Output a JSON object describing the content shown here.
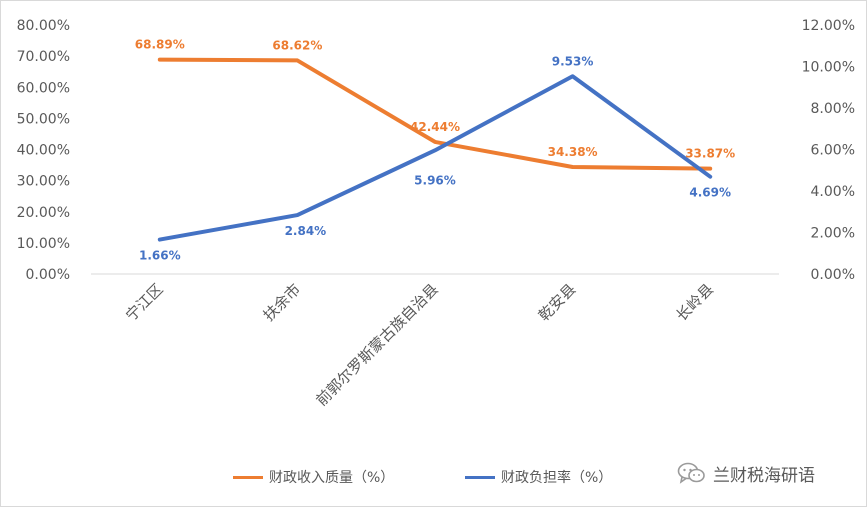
{
  "chart_data": {
    "type": "line",
    "categories": [
      "宁江区",
      "扶余市",
      "前郭尔罗斯蒙古族自治县",
      "乾安县",
      "长岭县"
    ],
    "series": [
      {
        "name": "财政收入质量（%）",
        "axis": "left",
        "color": "#ED7D31",
        "values": [
          68.89,
          68.62,
          42.44,
          34.38,
          33.87
        ],
        "labels": [
          "68.89%",
          "68.62%",
          "42.44%",
          "34.38%",
          "33.87%"
        ]
      },
      {
        "name": "财政负担率（%）",
        "axis": "right",
        "color": "#4472C4",
        "values": [
          1.66,
          2.84,
          5.96,
          9.53,
          4.69
        ],
        "labels": [
          "1.66%",
          "2.84%",
          "5.96%",
          "9.53%",
          "4.69%"
        ]
      }
    ],
    "y_left": {
      "min": 0,
      "max": 80,
      "step": 10,
      "ticks": [
        "0.00%",
        "10.00%",
        "20.00%",
        "30.00%",
        "40.00%",
        "50.00%",
        "60.00%",
        "70.00%",
        "80.00%"
      ]
    },
    "y_right": {
      "min": 0,
      "max": 12,
      "step": 2,
      "ticks": [
        "0.00%",
        "2.00%",
        "4.00%",
        "6.00%",
        "8.00%",
        "10.00%",
        "12.00%"
      ]
    },
    "grid": false,
    "legend_position": "bottom"
  },
  "watermark": {
    "text": "兰财税海研语",
    "icon": "wechat-icon"
  }
}
